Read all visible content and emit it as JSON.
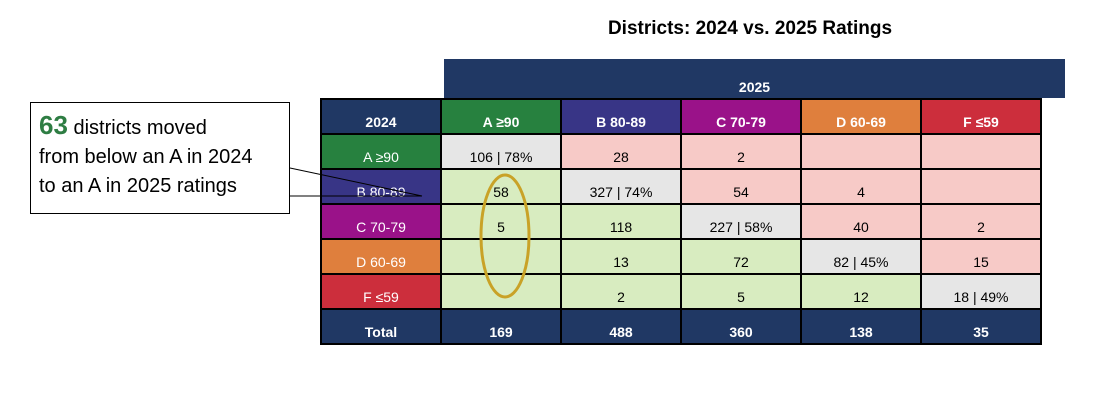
{
  "title": "Districts: 2024 vs. 2025 Ratings",
  "col_group": "2025",
  "row_header": "2024",
  "columns": [
    {
      "label": "A ≥90",
      "color": "#27813f"
    },
    {
      "label": "B 80-89",
      "color": "#383586"
    },
    {
      "label": "C 70-79",
      "color": "#9a1289"
    },
    {
      "label": "D 60-69",
      "color": "#df7f3d"
    },
    {
      "label": "F ≤59",
      "color": "#cc2e3c"
    }
  ],
  "rows": [
    {
      "label": "A ≥90",
      "cells": [
        "106 | 78%",
        "28",
        "2",
        "",
        ""
      ]
    },
    {
      "label": "B 80-89",
      "cells": [
        "58",
        "327 | 74%",
        "54",
        "4",
        ""
      ]
    },
    {
      "label": "C 70-79",
      "cells": [
        "5",
        "118",
        "227 | 58%",
        "40",
        "2"
      ]
    },
    {
      "label": "D 60-69",
      "cells": [
        "",
        "13",
        "72",
        "82 | 45%",
        "15"
      ]
    },
    {
      "label": "F ≤59",
      "cells": [
        "",
        "2",
        "5",
        "12",
        "18 | 49%"
      ]
    }
  ],
  "total": {
    "label": "Total",
    "values": [
      "169",
      "488",
      "360",
      "138",
      "35"
    ]
  },
  "colors": {
    "header": "#203864",
    "same": "#e6e6e6",
    "improved": "#d8ecc0",
    "declined": "#f7cac7",
    "highlight": "#c9a227",
    "callout_number": "#2e7d43"
  },
  "callout": {
    "number": "63",
    "text1": " districts moved",
    "text2": "from below an A in 2024",
    "text3": "to an A in 2025 ratings"
  }
}
